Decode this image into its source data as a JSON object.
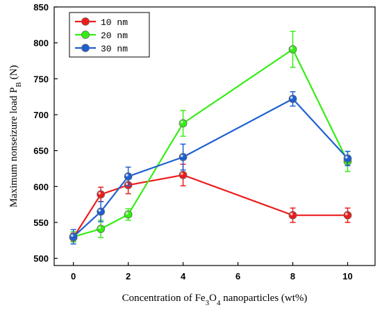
{
  "chart_data": {
    "type": "line",
    "xlabel_parts": [
      "Concentration of Fe",
      "3",
      "O",
      "4",
      " nanoparticles (wt%)"
    ],
    "ylabel_parts": [
      "Maximum nonseizure load P",
      "B",
      " (N)"
    ],
    "x_ticks": [
      0,
      2,
      4,
      6,
      8,
      10
    ],
    "y_ticks": [
      500,
      550,
      600,
      650,
      700,
      750,
      800,
      850
    ],
    "xlim": [
      -0.7,
      11
    ],
    "ylim": [
      490,
      850
    ],
    "legend_position": "top-left",
    "series": [
      {
        "name": "10 nm",
        "color": "#ee1c1c",
        "x": [
          0,
          1,
          2,
          4,
          8,
          10
        ],
        "y": [
          529,
          589,
          602,
          616,
          560,
          560
        ],
        "err": [
          6,
          10,
          12,
          15,
          10,
          10
        ]
      },
      {
        "name": "20 nm",
        "color": "#33ee11",
        "x": [
          0,
          1,
          2,
          4,
          8,
          10
        ],
        "y": [
          530,
          541,
          561,
          688,
          791,
          635
        ],
        "err": [
          7,
          12,
          8,
          18,
          25,
          14
        ]
      },
      {
        "name": "30 nm",
        "color": "#1e5fd0",
        "x": [
          0,
          1,
          2,
          4,
          8,
          10
        ],
        "y": [
          530,
          565,
          614,
          641,
          722,
          639
        ],
        "err": [
          10,
          14,
          13,
          18,
          10,
          10
        ]
      }
    ]
  }
}
